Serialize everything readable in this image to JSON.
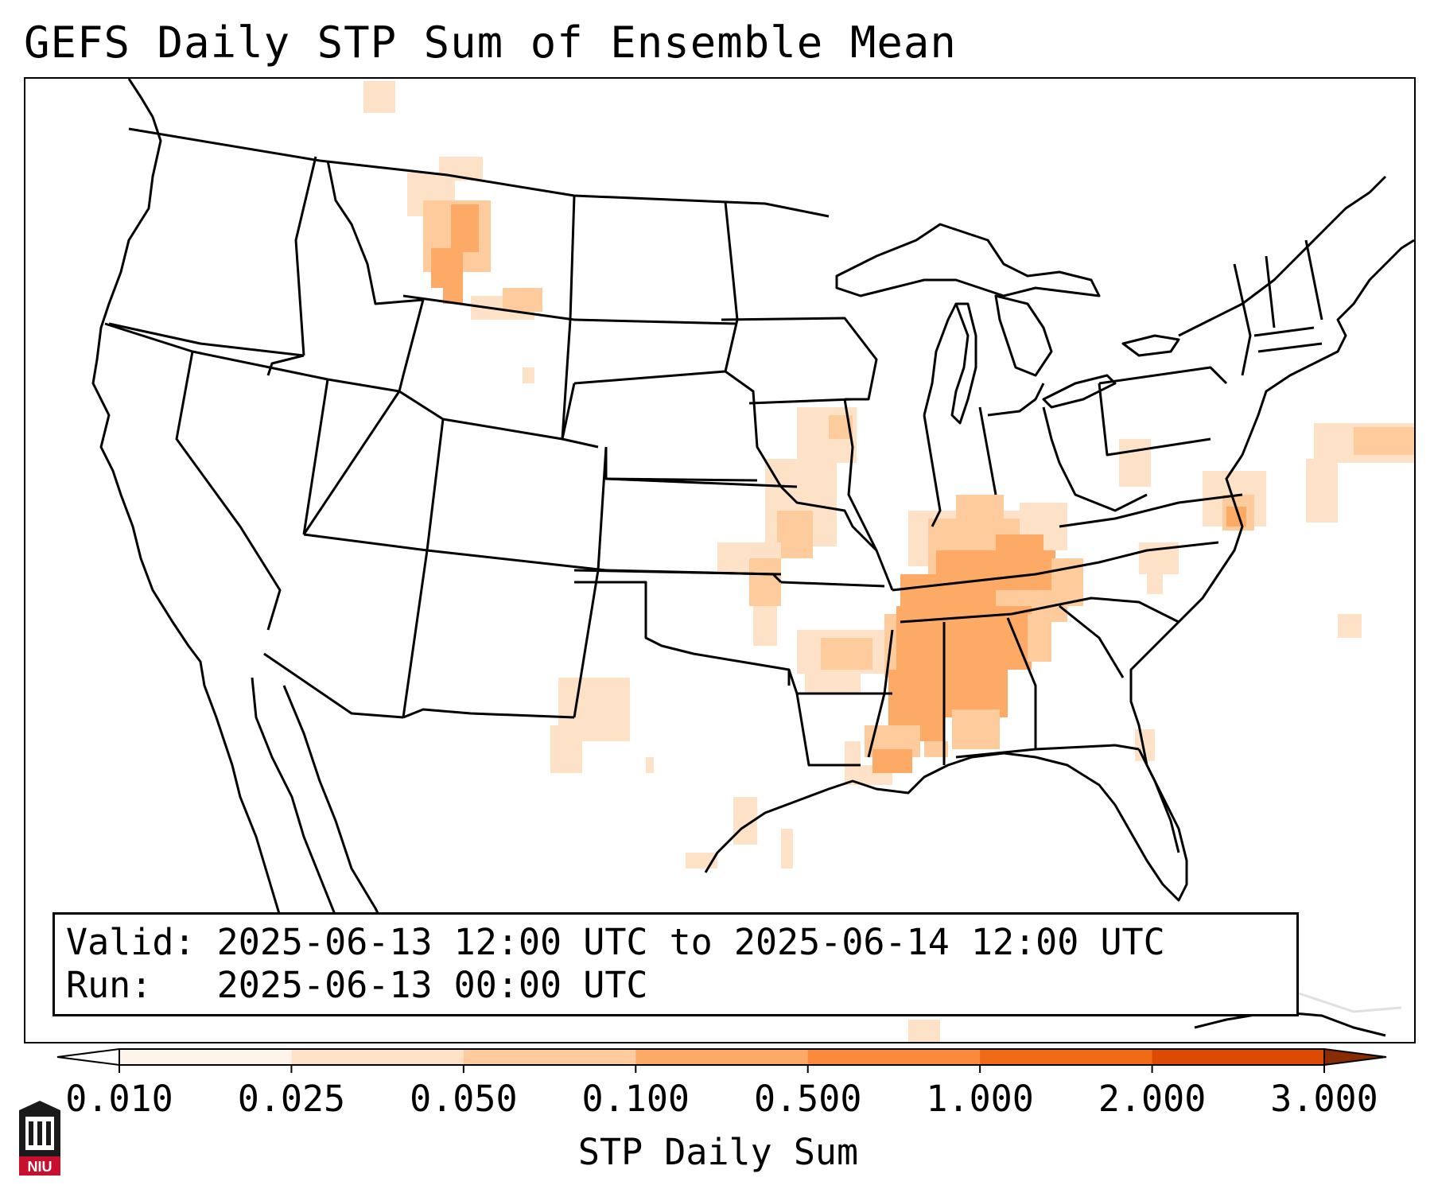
{
  "title": "GEFS Daily STP Sum of Ensemble Mean",
  "info": {
    "valid_label": "Valid:",
    "valid_text": "2025-06-13 12:00 UTC to 2025-06-14 12:00 UTC",
    "run_label": "Run:",
    "run_text": "2025-06-13 00:00 UTC"
  },
  "colorbar": {
    "label": "STP Daily Sum",
    "ticks": [
      "0.010",
      "0.025",
      "0.050",
      "0.100",
      "0.500",
      "1.000",
      "2.000",
      "3.000"
    ],
    "colors": [
      "#fff4e9",
      "#fee2c7",
      "#fdcb9c",
      "#fdaa67",
      "#fb8a3c",
      "#f06a18",
      "#dc4a05",
      "#aa3503"
    ],
    "under_color": "#ffffff",
    "over_color": "#8a2c02"
  },
  "logo": {
    "text": "NIU",
    "color": "#c8102e"
  },
  "map": {
    "projection": "Lambert Conformal (CONUS)",
    "features": [
      "state-borders",
      "coastlines",
      "lakes",
      "country-borders"
    ],
    "stp_areas": [
      {
        "region": "Montana / Wyoming",
        "level": "0.100-0.500"
      },
      {
        "region": "Tennessee Valley / Mississippi / Alabama",
        "level": "0.100-0.500"
      },
      {
        "region": "Arkansas / Louisiana",
        "level": "0.050-0.100"
      },
      {
        "region": "Iowa / Missouri / Kansas",
        "level": "0.025-0.050"
      },
      {
        "region": "West Texas",
        "level": "0.025-0.050"
      },
      {
        "region": "Delmarva / Chesapeake",
        "level": "0.100-0.500"
      },
      {
        "region": "Western Atlantic",
        "level": "0.025-0.050"
      }
    ]
  }
}
